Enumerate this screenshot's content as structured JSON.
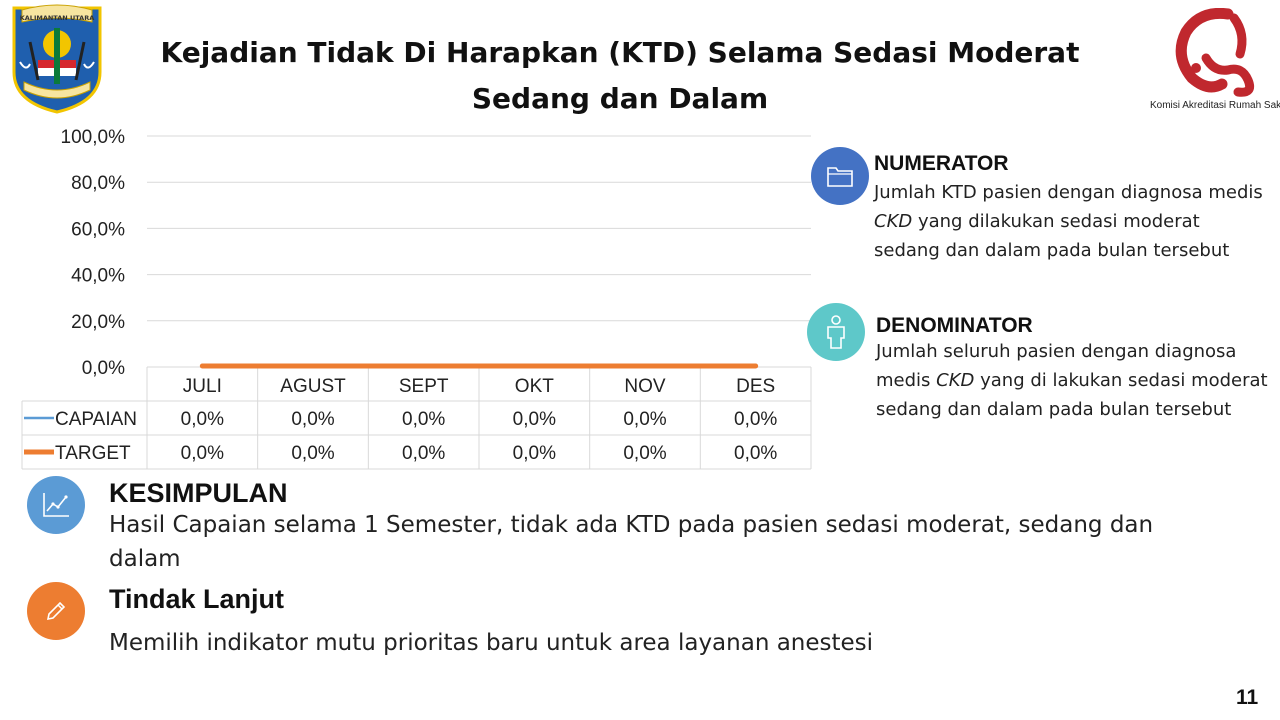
{
  "title": {
    "line1": "Kejadian Tidak Di Harapkan (KTD) Selama Sedasi Moderat",
    "line2": "Sedang dan Dalam"
  },
  "logos": {
    "left": {
      "text": "KALIMANTAN UTARA"
    },
    "right": {
      "caption": "Komisi Akreditasi Rumah Sakit",
      "color": "#c0282e"
    }
  },
  "chart_data": {
    "type": "line",
    "categories": [
      "JULI",
      "AGUST",
      "SEPT",
      "OKT",
      "NOV",
      "DES"
    ],
    "series": [
      {
        "name": "CAPAIAN",
        "values": [
          0,
          0,
          0,
          0,
          0,
          0
        ],
        "labels": [
          "0,0%",
          "0,0%",
          "0,0%",
          "0,0%",
          "0,0%",
          "0,0%"
        ],
        "color": "#5b9bd5"
      },
      {
        "name": "TARGET",
        "values": [
          0,
          0,
          0,
          0,
          0,
          0
        ],
        "labels": [
          "0,0%",
          "0,0%",
          "0,0%",
          "0,0%",
          "0,0%",
          "0,0%"
        ],
        "color": "#ed7d31"
      }
    ],
    "ylim": [
      0,
      100
    ],
    "yticks": [
      "0,0%",
      "20,0%",
      "40,0%",
      "60,0%",
      "80,0%",
      "100,0%"
    ],
    "grid": true,
    "data_table": true
  },
  "numerator": {
    "heading": "NUMERATOR",
    "text_pre": "Jumlah KTD pasien dengan diagnosa medis ",
    "text_em": "CKD",
    "text_post": " yang dilakukan sedasi moderat sedang dan dalam pada bulan tersebut",
    "icon": "folder-icon",
    "color": "#4472c4"
  },
  "denominator": {
    "heading": "DENOMINATOR",
    "text_pre": "Jumlah seluruh pasien dengan diagnosa medis ",
    "text_em": "CKD",
    "text_post": " yang di lakukan sedasi moderat sedang dan dalam pada bulan tersebut",
    "icon": "person-icon",
    "color": "#5ec8c9"
  },
  "kesimpulan": {
    "heading": "KESIMPULAN",
    "text": "Hasil Capaian selama 1 Semester, tidak ada KTD pada pasien sedasi moderat, sedang dan dalam",
    "icon": "chart-icon",
    "color": "#5b9bd5"
  },
  "tindak_lanjut": {
    "heading": "Tindak Lanjut",
    "text": "Memilih indikator mutu prioritas baru untuk area layanan anestesi",
    "icon": "pencil-icon",
    "color": "#ed7d31"
  },
  "page_number": "11"
}
